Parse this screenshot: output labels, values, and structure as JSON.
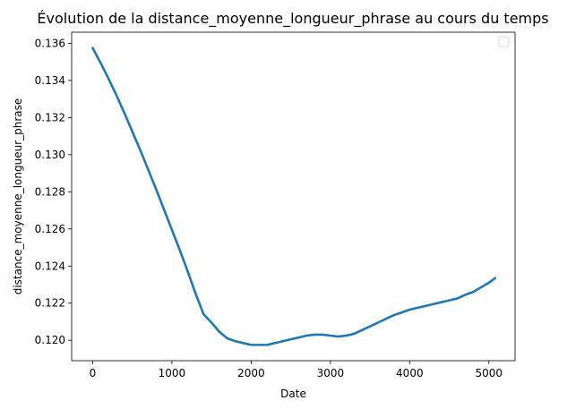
{
  "chart_data": {
    "type": "line",
    "title": "Évolution de la distance_moyenne_longueur_phrase au cours du temps",
    "xlabel": "Date",
    "ylabel": "distance_moyenne_longueur_phrase",
    "xlim": [
      -265,
      5330
    ],
    "ylim": [
      0.1189,
      0.1366
    ],
    "xticks": [
      0,
      1000,
      2000,
      3000,
      4000,
      5000
    ],
    "xtick_labels": [
      "0",
      "1000",
      "2000",
      "3000",
      "4000",
      "5000"
    ],
    "yticks": [
      0.12,
      0.122,
      0.124,
      0.126,
      0.128,
      0.13,
      0.132,
      0.134,
      0.136
    ],
    "ytick_labels": [
      "0.120",
      "0.122",
      "0.124",
      "0.126",
      "0.128",
      "0.130",
      "0.132",
      "0.134",
      "0.136"
    ],
    "grid": false,
    "legend": {
      "placement": "upper-right",
      "entries": []
    },
    "series": [
      {
        "color": "#1f77b4",
        "x": [
          0,
          100,
          200,
          300,
          400,
          500,
          600,
          700,
          800,
          900,
          1000,
          1100,
          1200,
          1300,
          1400,
          1500,
          1600,
          1700,
          1800,
          1900,
          2000,
          2100,
          2200,
          2300,
          2400,
          2500,
          2600,
          2700,
          2800,
          2900,
          3000,
          3100,
          3200,
          3300,
          3400,
          3500,
          3600,
          3700,
          3800,
          3900,
          4000,
          4100,
          4200,
          4300,
          4400,
          4500,
          4600,
          4700,
          4800,
          4900,
          5000,
          5080
        ],
        "y": [
          0.13575,
          0.13495,
          0.1341,
          0.1332,
          0.13225,
          0.13125,
          0.13025,
          0.1292,
          0.12815,
          0.12705,
          0.12595,
          0.12485,
          0.1237,
          0.1225,
          0.1214,
          0.12095,
          0.12045,
          0.1201,
          0.11995,
          0.11985,
          0.11975,
          0.11975,
          0.11975,
          0.11985,
          0.11995,
          0.12005,
          0.12015,
          0.12025,
          0.1203,
          0.1203,
          0.12025,
          0.1202,
          0.12025,
          0.12035,
          0.12055,
          0.12075,
          0.12095,
          0.12115,
          0.12135,
          0.1215,
          0.12165,
          0.12175,
          0.12185,
          0.12195,
          0.12205,
          0.12215,
          0.12225,
          0.12245,
          0.1226,
          0.12285,
          0.1231,
          0.12335
        ]
      }
    ]
  }
}
